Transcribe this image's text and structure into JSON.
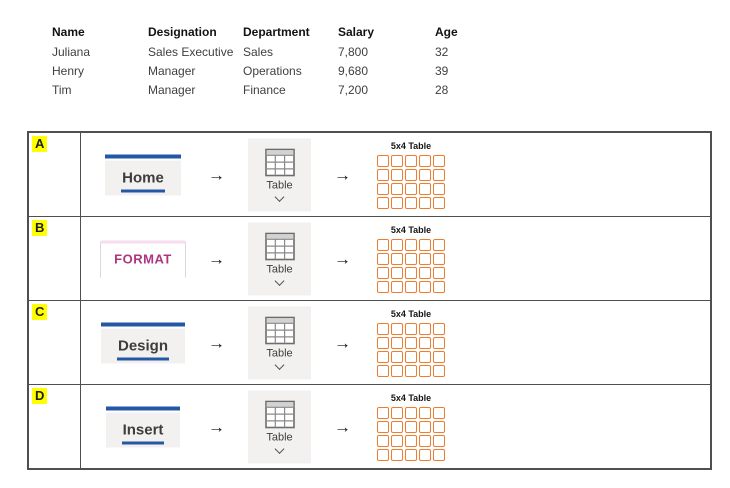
{
  "employee_table": {
    "headers": [
      "Name",
      "Designation",
      "Department",
      "Salary",
      "Age"
    ],
    "rows": [
      [
        "Juliana",
        "Sales Executive",
        "Sales",
        "7,800",
        "32"
      ],
      [
        "Henry",
        "Manager",
        "Operations",
        "9,680",
        "39"
      ],
      [
        "Tim",
        "Manager",
        "Finance",
        "7,200",
        "28"
      ]
    ]
  },
  "options": [
    {
      "letter": "A",
      "tab_label": "Home"
    },
    {
      "letter": "B",
      "tab_label": "FORMAT"
    },
    {
      "letter": "C",
      "tab_label": "Design"
    },
    {
      "letter": "D",
      "tab_label": "Insert"
    }
  ],
  "labels": {
    "table_button": "Table",
    "grid_label": "5x4 Table"
  },
  "glyphs": {
    "arrow": "→"
  },
  "grid": {
    "cols": 5,
    "rows": 4
  },
  "colors": {
    "accent_blue": "#2457a4",
    "contextual_magenta": "#b03581",
    "contextual_tab_top": "#f6ddee",
    "grid_orange": "#ed7d31",
    "highlight_yellow": "#ffff00",
    "button_gray": "#f2f1f0",
    "table_border": "#4f4f4f"
  }
}
